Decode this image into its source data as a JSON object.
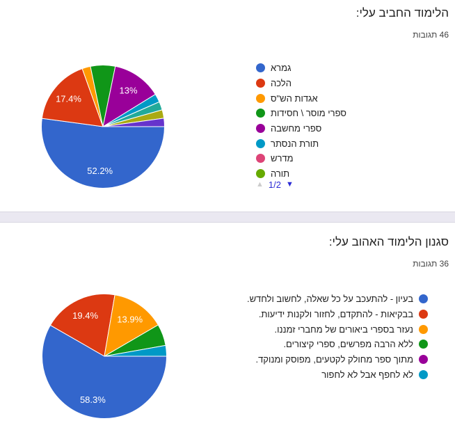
{
  "page": {
    "background": "#FFFFFF",
    "divider_color": "#EAE8F1"
  },
  "chart_data": [
    {
      "type": "pie",
      "title": "הלימוד החביב עלי:",
      "responses_label": "46 תגובות",
      "start_angle_deg_from_top": 90,
      "direction": "clockwise",
      "pie_size_px": 180,
      "slices": [
        {
          "label": "גמרא",
          "pct": 52.2,
          "color": "#3366CC",
          "pct_label": "52.2%"
        },
        {
          "label": "הלכה",
          "pct": 17.4,
          "color": "#DC3912",
          "pct_label": "17.4%"
        },
        {
          "label": "אגדות הש\"ס",
          "pct": 2.2,
          "color": "#FF9900"
        },
        {
          "label": "ספרי מוסר \\ חסידות",
          "pct": 6.5,
          "color": "#109618"
        },
        {
          "label": "ספרי מחשבה",
          "pct": 13.0,
          "color": "#990099",
          "pct_label": "13%"
        },
        {
          "label": "תורת הנסתר",
          "pct": 2.2,
          "color": "#0099C6"
        },
        {
          "label": "",
          "pct": 2.2,
          "color": "#22AA99"
        },
        {
          "label": "",
          "pct": 2.2,
          "color": "#AAAA11"
        },
        {
          "label": "",
          "pct": 2.2,
          "color": "#6633CC"
        }
      ],
      "legend": {
        "position": "right",
        "items": [
          {
            "label": "גמרא",
            "color": "#3366CC"
          },
          {
            "label": "הלכה",
            "color": "#DC3912"
          },
          {
            "label": "אגדות הש\"ס",
            "color": "#FF9900"
          },
          {
            "label": "ספרי מוסר \\ חסידות",
            "color": "#109618"
          },
          {
            "label": "ספרי מחשבה",
            "color": "#990099"
          },
          {
            "label": "תורת הנסתר",
            "color": "#0099C6"
          },
          {
            "label": "מדרש",
            "color": "#DD4477"
          },
          {
            "label": "תורה",
            "color": "#66AA00"
          }
        ],
        "pager": {
          "text": "1/2",
          "up_glyph": "▲",
          "down_glyph": "▼",
          "up_arrow_color": "#CCCCCC",
          "down_arrow_color": "#2B2BD5",
          "text_color": "#2B2BD5"
        }
      }
    },
    {
      "type": "pie",
      "title": "סגנון הלימוד האהוב עלי:",
      "responses_label": "36 תגובות",
      "start_angle_deg_from_top": 90,
      "direction": "clockwise",
      "pie_size_px": 182,
      "slices": [
        {
          "label": "בעיון - להתעכב על כל שאלה, לחשוב ולחדש.",
          "pct": 58.3,
          "color": "#3366CC",
          "pct_label": "58.3%"
        },
        {
          "label": "בבקיאות - להתקדם, לחזור ולקנות ידיעות.",
          "pct": 19.4,
          "color": "#DC3912",
          "pct_label": "19.4%"
        },
        {
          "label": "נעזר בספרי ביאורים של מחברי זמננו.",
          "pct": 13.9,
          "color": "#FF9900",
          "pct_label": "13.9%"
        },
        {
          "label": "ללא הרבה מפרשים, ספרי קיצורים.",
          "pct": 5.6,
          "color": "#109618"
        },
        {
          "label": "לא לחפף אבל לא לחפור",
          "pct": 2.8,
          "color": "#0099C6"
        }
      ],
      "legend": {
        "position": "right",
        "items": [
          {
            "label": "בעיון - להתעכב על כל שאלה, לחשוב ולחדש.",
            "color": "#3366CC"
          },
          {
            "label": "בבקיאות - להתקדם, לחזור ולקנות ידיעות.",
            "color": "#DC3912"
          },
          {
            "label": "נעזר בספרי ביאורים של מחברי זמננו.",
            "color": "#FF9900"
          },
          {
            "label": "ללא הרבה מפרשים, ספרי קיצורים.",
            "color": "#109618"
          },
          {
            "label": "מתוך ספר מחולק לקטעים, מפוסק ומנוקד.",
            "color": "#990099"
          },
          {
            "label": "לא לחפף אבל לא לחפור",
            "color": "#0099C6"
          }
        ]
      }
    }
  ]
}
